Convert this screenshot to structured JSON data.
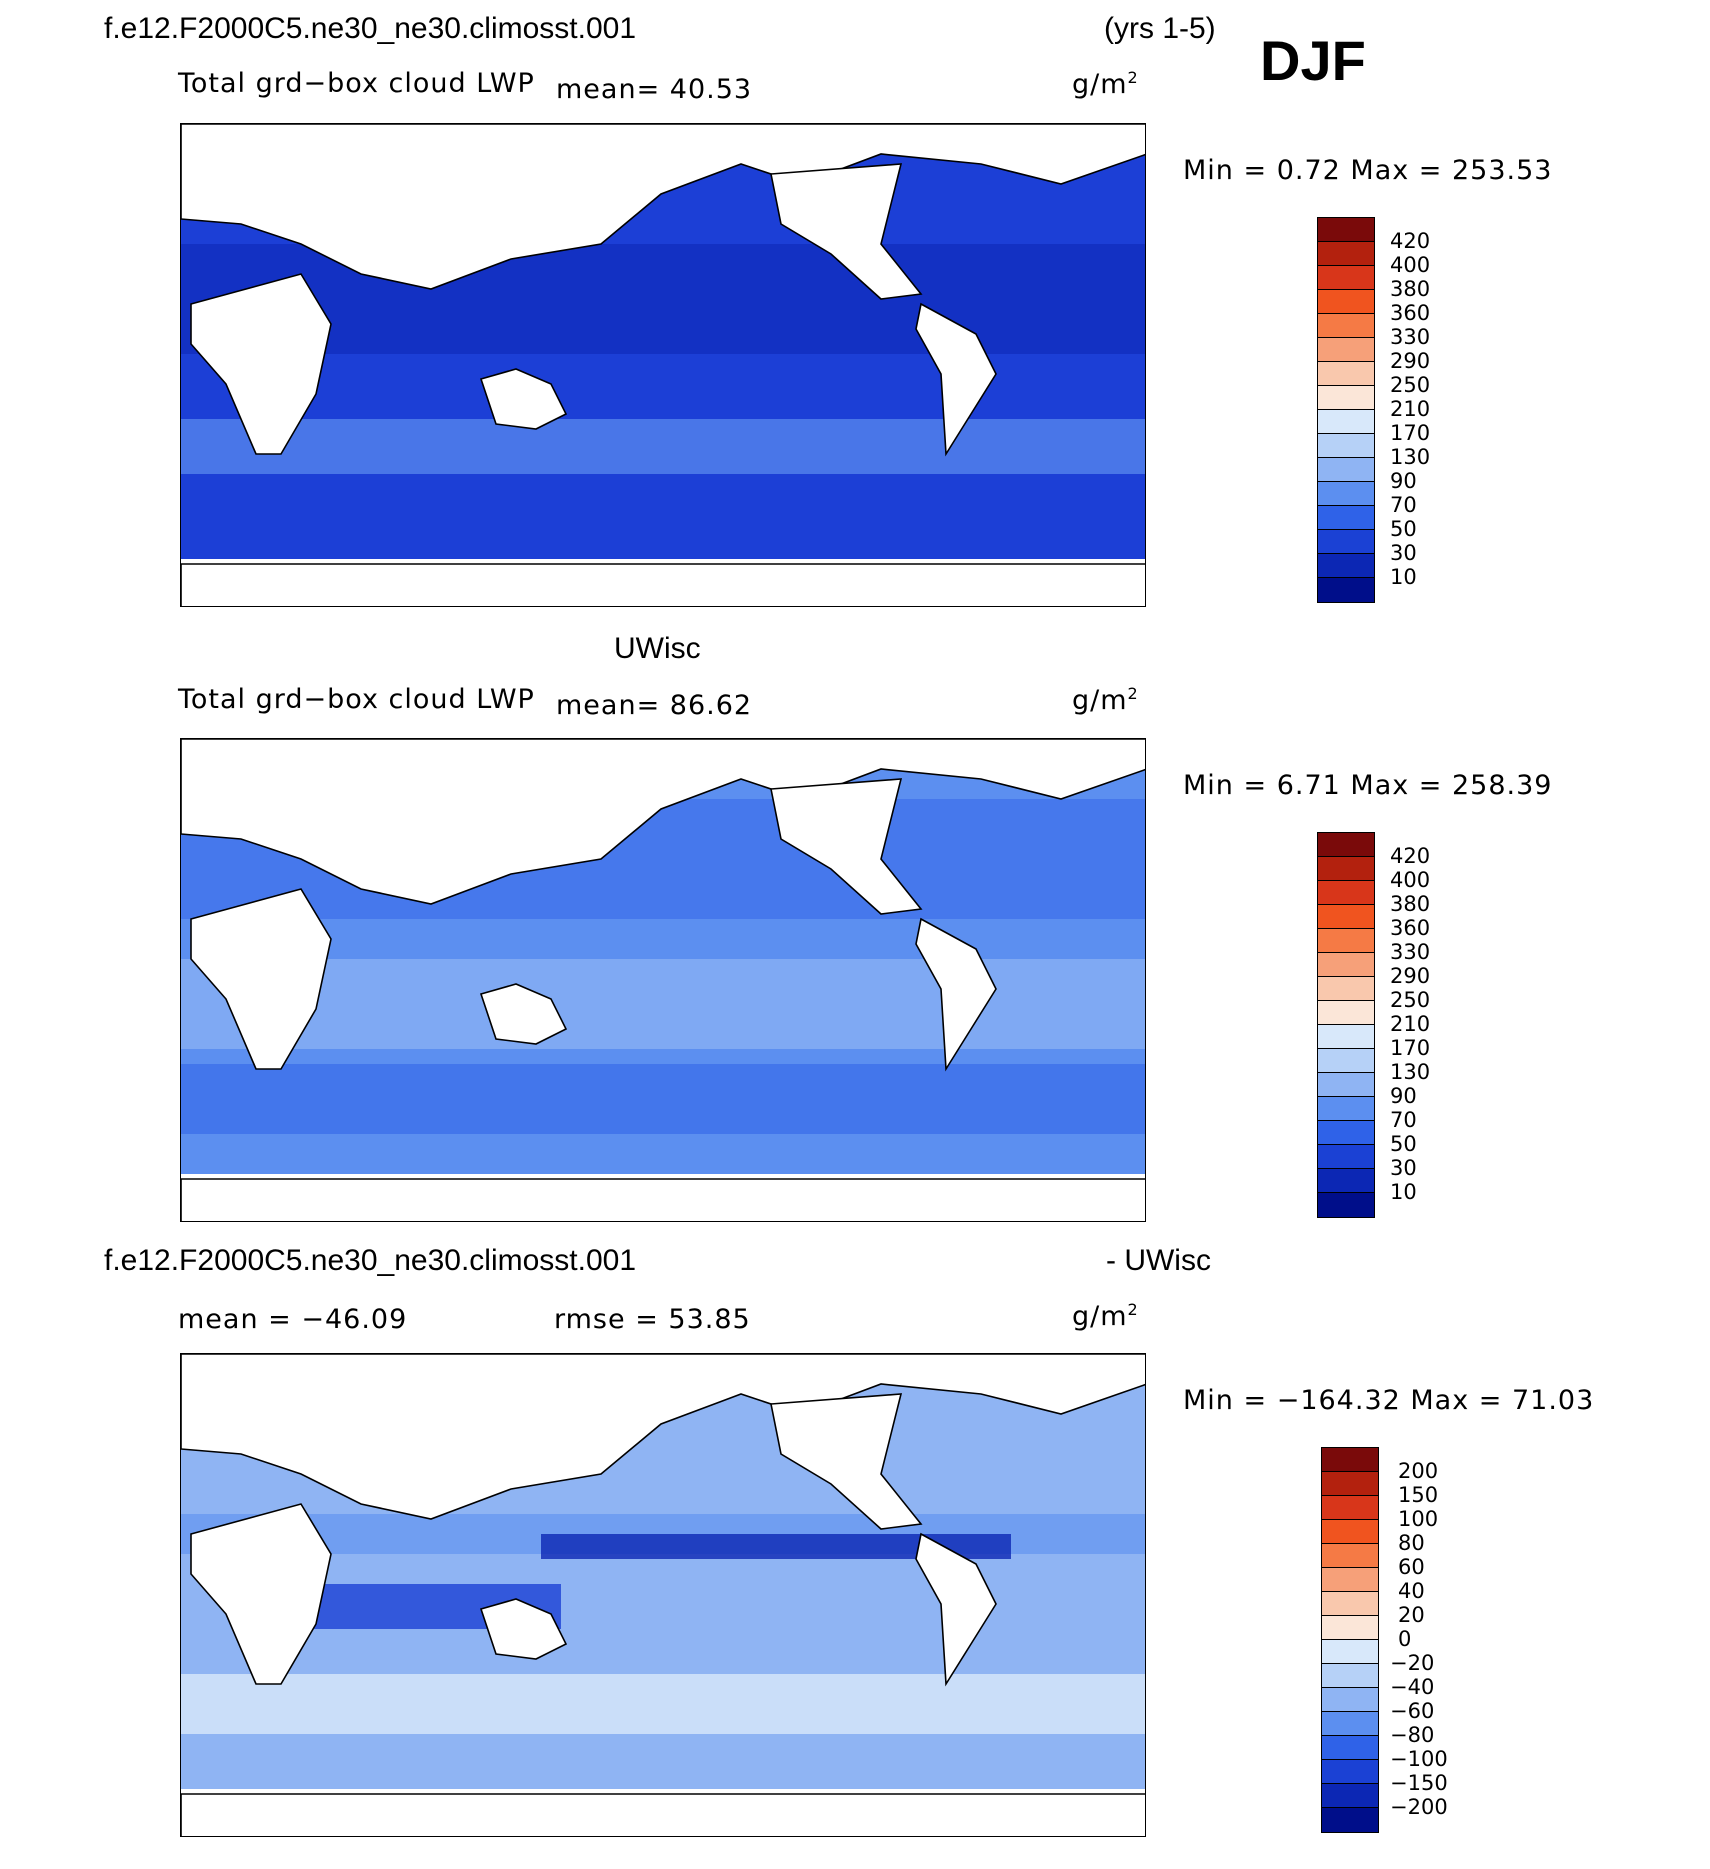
{
  "header": {
    "case_name": "f.e12.F2000C5.ne30_ne30.climosst.001",
    "years": "(yrs 1-5)",
    "season": "DJF"
  },
  "panels": [
    {
      "title": "",
      "variable": "Total grd−box cloud LWP",
      "mean_text": "mean=   40.53",
      "units": "g/m",
      "units_exp": "2",
      "minmax": "Min  =    0.72  Max  =  253.53",
      "colorbar_labels": [
        "420",
        "400",
        "380",
        "360",
        "330",
        "290",
        "250",
        "210",
        "170",
        "130",
        "90",
        "70",
        "50",
        "30",
        "10"
      ],
      "colors": [
        "#7a0a0a",
        "#b3210e",
        "#d8361a",
        "#f0541f",
        "#f57a45",
        "#f6a079",
        "#f9c8ad",
        "#fbe6d8",
        "#d8e8fa",
        "#b6d1f7",
        "#8fb4f3",
        "#5c8ff0",
        "#2f62e8",
        "#1b41d4",
        "#0c27b4",
        "#000e8a"
      ],
      "ocean_color": "#1c3fd6"
    },
    {
      "title": "UWisc",
      "variable": "Total grd−box cloud LWP",
      "mean_text": "mean=   86.62",
      "units": "g/m",
      "units_exp": "2",
      "minmax": "Min  =    6.71  Max  =  258.39",
      "colorbar_labels": [
        "420",
        "400",
        "380",
        "360",
        "330",
        "290",
        "250",
        "210",
        "170",
        "130",
        "90",
        "70",
        "50",
        "30",
        "10"
      ],
      "colors": [
        "#7a0a0a",
        "#b3210e",
        "#d8361a",
        "#f0541f",
        "#f57a45",
        "#f6a079",
        "#f9c8ad",
        "#fbe6d8",
        "#d8e8fa",
        "#b6d1f7",
        "#8fb4f3",
        "#5c8ff0",
        "#2f62e8",
        "#1b41d4",
        "#0c27b4",
        "#000e8a"
      ],
      "ocean_color": "#5c8ff0"
    },
    {
      "title_left": "f.e12.F2000C5.ne30_ne30.climosst.001",
      "title_right": "- UWisc",
      "mean_text": "mean  =  −46.09",
      "rmse_text": "rmse  =   53.85",
      "units": "g/m",
      "units_exp": "2",
      "minmax": "Min  =  −164.32  Max  =   71.03",
      "colorbar_labels": [
        "200",
        "150",
        "100",
        "80",
        "60",
        "40",
        "20",
        "0",
        "−20",
        "−40",
        "−60",
        "−80",
        "−100",
        "−150",
        "−200"
      ],
      "colors": [
        "#7a0a0a",
        "#b3210e",
        "#d8361a",
        "#f0541f",
        "#f57a45",
        "#f6a079",
        "#f9c8ad",
        "#fbe6d8",
        "#d8e8fa",
        "#b6d1f7",
        "#8fb4f3",
        "#5c8ff0",
        "#2f62e8",
        "#1b41d4",
        "#0c27b4",
        "#000e8a"
      ],
      "ocean_color": "#8fb4f3"
    }
  ]
}
